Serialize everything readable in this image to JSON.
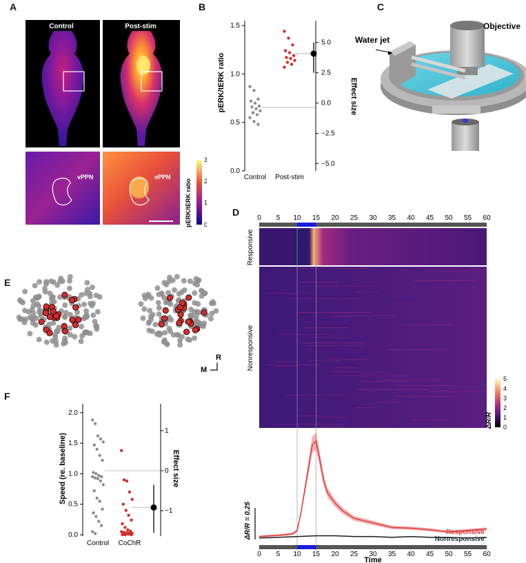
{
  "panels": {
    "A": {
      "label": "A",
      "control_title": "Control",
      "poststim_title": "Post-stim",
      "region_label": "vPPN",
      "colorbar_label": "pERK/tERK ratio",
      "colorbar_ticks": [
        "0",
        "1",
        "2",
        "3"
      ]
    },
    "B": {
      "label": "B",
      "chart_data": {
        "type": "scatter",
        "ylabel": "pERK/tERK ratio",
        "y2label": "Effect size",
        "categories": [
          "Control",
          "Post-stim"
        ],
        "yticks": [
          "0.0",
          "0.5",
          "1.0",
          "1.5"
        ],
        "y2ticks": [
          "5.0",
          "2.5",
          "0.0",
          "−2.5",
          "−5.0"
        ],
        "ylim": [
          0,
          1.55
        ],
        "y2lim": [
          -5.6,
          6.8
        ],
        "series": [
          {
            "color": "#8c8c8c",
            "values": [
              0.87,
              0.83,
              0.74,
              0.72,
              0.7,
              0.67,
              0.66,
              0.64,
              0.62,
              0.6,
              0.58,
              0.55,
              0.51,
              0.48
            ]
          },
          {
            "color": "#d42c2c",
            "values": [
              1.44,
              1.37,
              1.3,
              1.24,
              1.22,
              1.19,
              1.17,
              1.16,
              1.14,
              1.12,
              1.1,
              1.07
            ]
          }
        ],
        "effect": {
          "mean": 3.8,
          "ci": [
            2.5,
            5.0
          ]
        }
      }
    },
    "C": {
      "label": "C",
      "objective_label": "Objective",
      "waterjet_label": "Water jet"
    },
    "D": {
      "label": "D",
      "heatmap_groups": [
        "Responsive",
        "Nonresponsive"
      ],
      "colorbar_label": "ΔR/R",
      "colorbar_ticks": [
        "0",
        "1",
        "2",
        "3",
        "4",
        "5"
      ],
      "time_ticks": [
        "0",
        "5",
        "10",
        "15",
        "20",
        "25",
        "30",
        "35",
        "40",
        "45",
        "50",
        "55",
        "60"
      ],
      "xlabel": "Time",
      "scale_label": "ΔR/R = 0.25",
      "stim_window": [
        10,
        15
      ],
      "chart_data": {
        "type": "line",
        "xlabel": "Time",
        "xlim": [
          0,
          60
        ],
        "series": [
          {
            "name": "Responsive",
            "color": "#e03c3c",
            "x": [
              0,
              3,
              6,
              8,
              9,
              10,
              11,
              12,
              13,
              14,
              15,
              16,
              17,
              18,
              20,
              22,
              25,
              30,
              35,
              40,
              45,
              50,
              55,
              60
            ],
            "values": [
              0.04,
              0.05,
              0.06,
              0.07,
              0.08,
              0.12,
              0.35,
              0.65,
              0.95,
              1.25,
              1.3,
              1.05,
              0.78,
              0.62,
              0.48,
              0.38,
              0.28,
              0.22,
              0.16,
              0.15,
              0.13,
              0.1,
              0.12,
              0.14
            ]
          },
          {
            "name": "Nonresponsive",
            "color": "#1a1a1a",
            "x": [
              0,
              5,
              10,
              15,
              20,
              25,
              30,
              35,
              40,
              45,
              50,
              55,
              60
            ],
            "values": [
              0.02,
              0.03,
              0.04,
              0.05,
              0.05,
              0.04,
              0.04,
              0.03,
              0.04,
              0.03,
              0.03,
              0.02,
              0.03
            ]
          }
        ]
      }
    },
    "E": {
      "label": "E",
      "axis_r": "R",
      "axis_m": "M"
    },
    "F": {
      "label": "F",
      "chart_data": {
        "type": "scatter",
        "ylabel": "Speed (re. baseline)",
        "y2label": "Effect size",
        "categories": [
          "Control",
          "CoChR"
        ],
        "yticks": [
          "0.0",
          "0.5",
          "1.0",
          "1.5",
          "2.0"
        ],
        "y2ticks": [
          "1",
          "0",
          "−1"
        ],
        "ylim": [
          0,
          2.1
        ],
        "y2lim": [
          -1.6,
          1.6
        ],
        "series": [
          {
            "color": "#8c8c8c",
            "values": [
              1.88,
              1.82,
              1.62,
              1.57,
              1.52,
              1.47,
              1.4,
              1.3,
              1.22,
              1.02,
              1.0,
              0.97,
              0.95,
              0.95,
              0.93,
              0.92,
              0.88,
              0.82,
              0.72,
              0.6,
              0.55,
              0.42,
              0.36,
              0.3,
              0.22,
              0.15,
              0.05,
              0.02
            ]
          },
          {
            "color": "#d42c2c",
            "values": [
              1.38,
              0.9,
              0.88,
              0.7,
              0.58,
              0.5,
              0.4,
              0.32,
              0.24,
              0.18,
              0.12,
              0.08,
              0.06,
              0.05,
              0.04,
              0.03,
              0.03,
              0.02,
              0.02,
              0.01,
              0.01,
              0.0,
              0.0,
              0.0
            ]
          }
        ],
        "effect": {
          "mean": -0.92,
          "ci": [
            -1.55,
            -0.35
          ]
        }
      }
    }
  }
}
